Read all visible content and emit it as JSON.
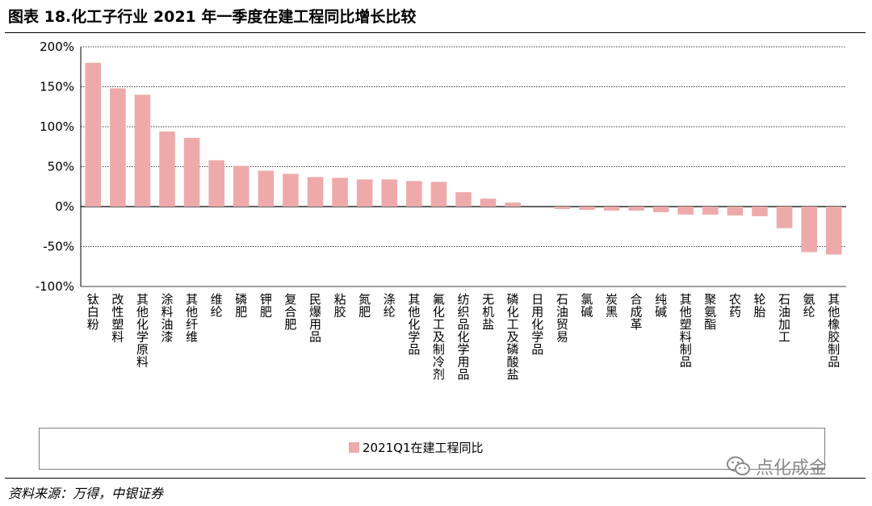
{
  "title": "图表 18.化工子行业 2021 年一季度在建工程同比增长比较",
  "source": "资料来源：万得，中银证券",
  "watermark": "点化成金",
  "colors": {
    "bar": "#eeaaaa",
    "grid": "#000000"
  },
  "chart_data": {
    "type": "bar",
    "legend_position": "bottom",
    "grid": true,
    "ylim": [
      -100,
      200
    ],
    "yticks": [
      -100,
      -50,
      0,
      50,
      100,
      150,
      200
    ],
    "ytick_labels": [
      "-100%",
      "-50%",
      "0%",
      "50%",
      "100%",
      "150%",
      "200%"
    ],
    "categories": [
      "钛白粉",
      "改性塑料",
      "其他化学原料",
      "涂料油漆",
      "其他纤维",
      "维纶",
      "磷肥",
      "钾肥",
      "复合肥",
      "民爆用品",
      "粘胶",
      "氮肥",
      "涤纶",
      "其他化学品",
      "氟化工及制冷剂",
      "纺织品化学用品",
      "无机盐",
      "磷化工及磷酸盐",
      "日用化学品",
      "石油贸易",
      "氯碱",
      "炭黑",
      "合成革",
      "纯碱",
      "其他塑料制品",
      "聚氨酯",
      "农药",
      "轮胎",
      "石油加工",
      "氨纶",
      "其他橡胶制品"
    ],
    "series": [
      {
        "name": "2021Q1在建工程同比",
        "values": [
          180,
          148,
          140,
          94,
          86,
          58,
          51,
          45,
          41,
          37,
          36,
          34,
          34,
          32,
          31,
          18,
          10,
          5,
          0,
          -3,
          -4,
          -5,
          -5,
          -7,
          -10,
          -10,
          -11,
          -12,
          -27,
          -57,
          -60
        ]
      }
    ]
  }
}
